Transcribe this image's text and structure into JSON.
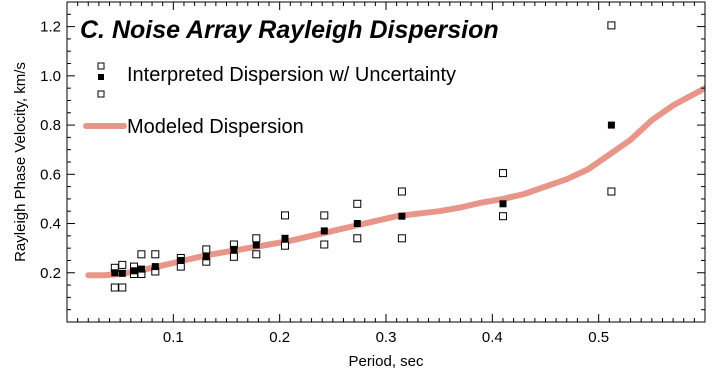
{
  "chart_data": {
    "type": "scatter",
    "title": "C. Noise Array Rayleigh Dispersion",
    "xlabel": "Period, sec",
    "ylabel": "Rayleigh Phase Velocity, km/s",
    "xlim": [
      0,
      0.6
    ],
    "ylim": [
      0,
      1.3
    ],
    "x_ticks": [
      0.1,
      0.2,
      0.3,
      0.4,
      0.5
    ],
    "x_tick_labels": [
      "0.1",
      "0.2",
      "0.3",
      "0.4",
      "0.5"
    ],
    "y_ticks": [
      0.2,
      0.4,
      0.6,
      0.8,
      1.0,
      1.2
    ],
    "y_tick_labels": [
      "0.2",
      "0.4",
      "0.6",
      "0.8",
      "1.0",
      "1.2"
    ],
    "grid": false,
    "legend_placement": "top-left",
    "series": [
      {
        "name": "Interpreted Dispersion w/ Uncertainty",
        "kind": "points-with-bounds",
        "color": "#000000",
        "x": [
          0.045,
          0.052,
          0.063,
          0.07,
          0.083,
          0.107,
          0.131,
          0.157,
          0.178,
          0.205,
          0.242,
          0.273,
          0.315,
          0.41,
          0.512
        ],
        "y": [
          0.2,
          0.198,
          0.208,
          0.215,
          0.225,
          0.25,
          0.265,
          0.295,
          0.313,
          0.34,
          0.37,
          0.4,
          0.43,
          0.48,
          0.8
        ],
        "upper": [
          0.22,
          0.232,
          0.225,
          0.275,
          0.275,
          0.26,
          0.295,
          0.315,
          0.34,
          0.433,
          0.433,
          0.48,
          0.53,
          0.605,
          1.205
        ],
        "lower": [
          0.14,
          0.14,
          0.195,
          0.195,
          0.205,
          0.225,
          0.245,
          0.265,
          0.275,
          0.31,
          0.315,
          0.34,
          0.34,
          0.43,
          0.53
        ]
      },
      {
        "name": "Modeled Dispersion",
        "kind": "line",
        "color": "#e8958a",
        "x": [
          0.02,
          0.035,
          0.05,
          0.07,
          0.09,
          0.11,
          0.13,
          0.15,
          0.17,
          0.19,
          0.21,
          0.23,
          0.25,
          0.27,
          0.29,
          0.31,
          0.33,
          0.35,
          0.37,
          0.39,
          0.41,
          0.43,
          0.45,
          0.47,
          0.49,
          0.51,
          0.53,
          0.55,
          0.57,
          0.6
        ],
        "y": [
          0.19,
          0.19,
          0.195,
          0.21,
          0.23,
          0.25,
          0.27,
          0.285,
          0.3,
          0.315,
          0.33,
          0.35,
          0.37,
          0.39,
          0.41,
          0.43,
          0.44,
          0.45,
          0.465,
          0.485,
          0.5,
          0.52,
          0.55,
          0.58,
          0.62,
          0.68,
          0.74,
          0.82,
          0.88,
          0.95
        ]
      }
    ]
  }
}
